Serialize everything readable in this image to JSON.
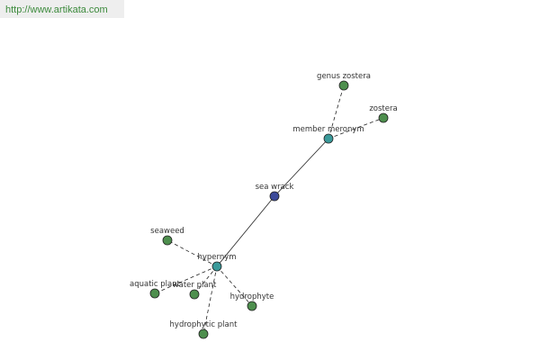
{
  "header": {
    "url": "http://www.artikata.com"
  },
  "nodes": [
    {
      "label": "sea wrack"
    },
    {
      "label": "member meronym"
    },
    {
      "label": "genus zostera"
    },
    {
      "label": "zostera"
    },
    {
      "label": "hypernym"
    },
    {
      "label": "seaweed"
    },
    {
      "label": "aquatic plant"
    },
    {
      "label": "water plant"
    },
    {
      "label": "hydrophyte"
    },
    {
      "label": "hydrophytic plant"
    }
  ]
}
